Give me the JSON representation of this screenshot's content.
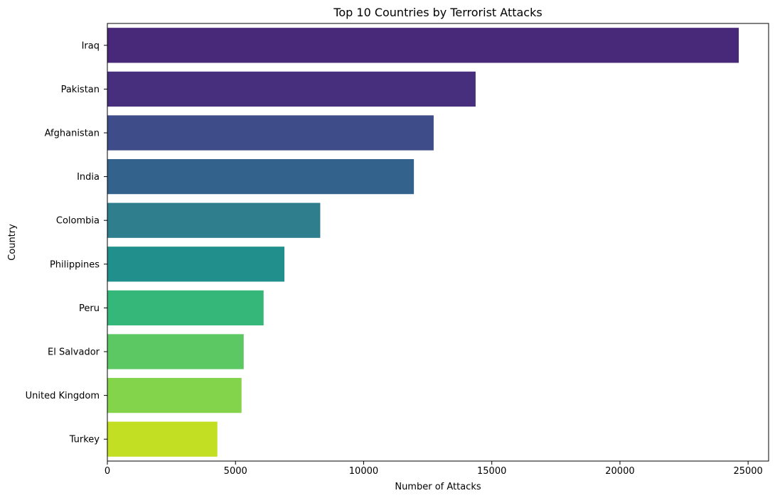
{
  "chart_data": {
    "type": "bar",
    "orientation": "horizontal",
    "title": "Top 10 Countries by Terrorist Attacks",
    "xlabel": "Number of Attacks",
    "ylabel": "Country",
    "xlim": [
      0,
      25800
    ],
    "xticks": [
      0,
      5000,
      10000,
      15000,
      20000,
      25000
    ],
    "xtick_labels": [
      "0",
      "5000",
      "10000",
      "15000",
      "20000",
      "25000"
    ],
    "grid": false,
    "categories": [
      "Iraq",
      "Pakistan",
      "Afghanistan",
      "India",
      "Colombia",
      "Philippines",
      "Peru",
      "El Salvador",
      "United Kingdom",
      "Turkey"
    ],
    "values": [
      24636,
      14368,
      12731,
      11960,
      8306,
      6908,
      6096,
      5320,
      5235,
      4292
    ],
    "colors": [
      "#482979",
      "#472f7d",
      "#3e4c8a",
      "#33638d",
      "#2e7e8e",
      "#21908d",
      "#35b779",
      "#5cc863",
      "#84d44b",
      "#c2df23"
    ]
  }
}
